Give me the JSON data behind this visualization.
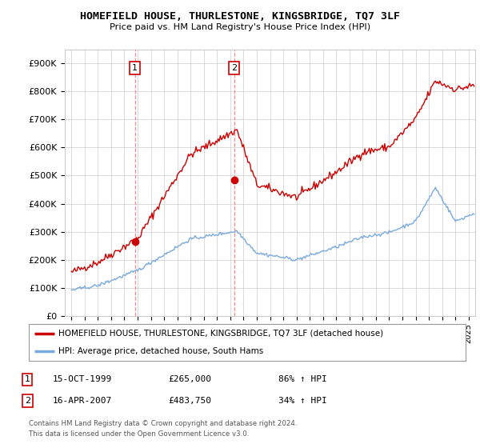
{
  "title": "HOMEFIELD HOUSE, THURLESTONE, KINGSBRIDGE, TQ7 3LF",
  "subtitle": "Price paid vs. HM Land Registry's House Price Index (HPI)",
  "ylabel_ticks": [
    "£0",
    "£100K",
    "£200K",
    "£300K",
    "£400K",
    "£500K",
    "£600K",
    "£700K",
    "£800K",
    "£900K"
  ],
  "ylim": [
    0,
    950000
  ],
  "xlim_start": 1994.5,
  "xlim_end": 2025.5,
  "legend_line1": "HOMEFIELD HOUSE, THURLESTONE, KINGSBRIDGE, TQ7 3LF (detached house)",
  "legend_line2": "HPI: Average price, detached house, South Hams",
  "sale1_label": "1",
  "sale1_date": "15-OCT-1999",
  "sale1_price": "£265,000",
  "sale1_hpi": "86% ↑ HPI",
  "sale1_x": 1999.79,
  "sale1_y": 265000,
  "sale2_label": "2",
  "sale2_date": "16-APR-2007",
  "sale2_price": "£483,750",
  "sale2_hpi": "34% ↑ HPI",
  "sale2_x": 2007.29,
  "sale2_y": 483750,
  "hpi_color": "#7aaadd",
  "price_color": "#cc0000",
  "marker_color": "#cc0000",
  "vline_color": "#cc0000",
  "footnote1": "Contains HM Land Registry data © Crown copyright and database right 2024.",
  "footnote2": "This data is licensed under the Open Government Licence v3.0.",
  "background_color": "#ffffff",
  "plot_bg_color": "#ffffff",
  "grid_color": "#cccccc"
}
